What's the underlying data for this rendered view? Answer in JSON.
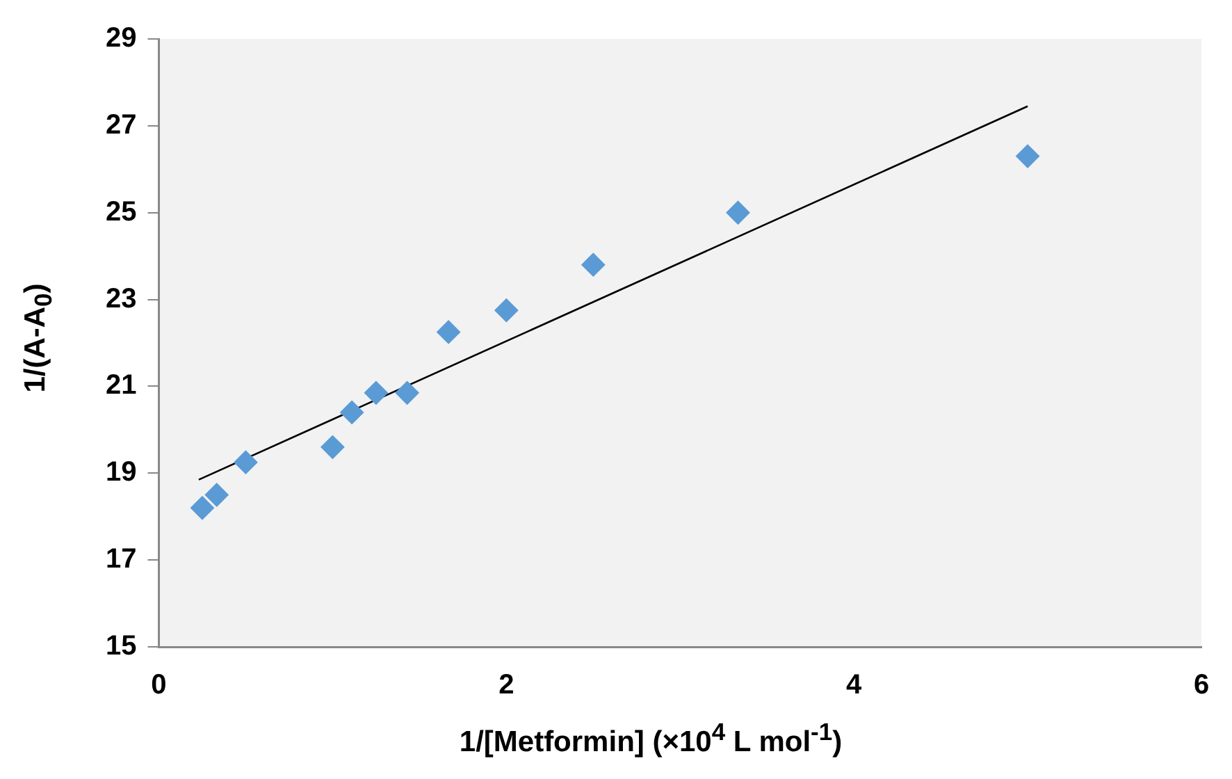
{
  "chart_data": {
    "type": "scatter",
    "xlabel": "1/[Metformin] (×10$^{4}$ L mol$^{-1}$)",
    "ylabel": "1/(A-A$_{0}$)",
    "xlim": [
      0,
      6
    ],
    "xticks": [
      0,
      2,
      4,
      6
    ],
    "ylim": [
      15,
      29
    ],
    "yticks": [
      15,
      17,
      19,
      21,
      23,
      25,
      27,
      29
    ],
    "grid": false,
    "legend": false,
    "marker": "diamond",
    "series": [
      {
        "color": "#5b9bd5",
        "x": [
          0.25,
          0.333,
          0.5,
          1,
          1.111,
          1.25,
          1.429,
          1.667,
          2,
          2.5,
          3.333,
          5
        ],
        "values": [
          18.2,
          18.5,
          19.25,
          19.6,
          20.4,
          20.85,
          20.85,
          22.25,
          22.75,
          23.8,
          25,
          26.3
        ]
      },
      {
        "type": "line",
        "color": "#000000",
        "marker": "none",
        "x": [
          0.23,
          5
        ],
        "values": [
          18.85,
          27.45
        ]
      }
    ]
  }
}
